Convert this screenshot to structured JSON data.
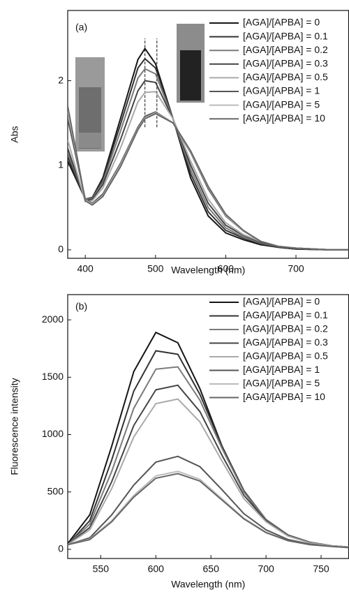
{
  "chart_data": [
    {
      "type": "line",
      "label": "(a)",
      "x_label": "Wavelength (nm)",
      "y_label": "Abs",
      "xlim": [
        375,
        775
      ],
      "ylim": [
        -0.1,
        2.83
      ],
      "xticks": [
        400,
        500,
        600,
        700
      ],
      "yticks": [
        0,
        1,
        2
      ],
      "reference_lines": [
        485,
        502
      ],
      "x": [
        375,
        400,
        410,
        425,
        450,
        475,
        485,
        500,
        525,
        550,
        575,
        600,
        625,
        650,
        675,
        700,
        750,
        775
      ],
      "series": [
        {
          "name": "[AGA]/[APBA] = 0",
          "color": "#151515",
          "values": [
            1.05,
            0.6,
            0.62,
            0.85,
            1.55,
            2.25,
            2.38,
            2.2,
            1.55,
            0.85,
            0.4,
            0.2,
            0.12,
            0.06,
            0.03,
            0.01,
            0.0,
            0.0
          ]
        },
        {
          "name": "[AGA]/[APBA] = 0.1",
          "color": "#333333",
          "values": [
            1.1,
            0.6,
            0.62,
            0.83,
            1.48,
            2.15,
            2.26,
            2.15,
            1.55,
            0.9,
            0.45,
            0.23,
            0.14,
            0.07,
            0.03,
            0.01,
            0.0,
            0.0
          ]
        },
        {
          "name": "[AGA]/[APBA] = 0.2",
          "color": "#7a7a7a",
          "values": [
            1.15,
            0.6,
            0.61,
            0.8,
            1.4,
            2.03,
            2.14,
            2.08,
            1.55,
            0.95,
            0.5,
            0.26,
            0.15,
            0.08,
            0.04,
            0.02,
            0.0,
            0.0
          ]
        },
        {
          "name": "[AGA]/[APBA] = 0.3",
          "color": "#444444",
          "values": [
            1.2,
            0.58,
            0.6,
            0.77,
            1.3,
            1.88,
            2.0,
            1.98,
            1.55,
            1.0,
            0.55,
            0.29,
            0.17,
            0.09,
            0.04,
            0.02,
            0.0,
            0.0
          ]
        },
        {
          "name": "[AGA]/[APBA] = 0.5",
          "color": "#aaaaaa",
          "values": [
            1.3,
            0.57,
            0.58,
            0.73,
            1.2,
            1.75,
            1.86,
            1.87,
            1.55,
            1.05,
            0.6,
            0.32,
            0.18,
            0.1,
            0.04,
            0.02,
            0.0,
            0.0
          ]
        },
        {
          "name": "[AGA]/[APBA] = 1",
          "color": "#555555",
          "values": [
            1.55,
            0.6,
            0.55,
            0.66,
            1.02,
            1.45,
            1.58,
            1.63,
            1.5,
            1.15,
            0.72,
            0.4,
            0.22,
            0.1,
            0.04,
            0.02,
            0.0,
            0.0
          ]
        },
        {
          "name": "[AGA]/[APBA] = 5",
          "color": "#bbbbbb",
          "values": [
            1.65,
            0.59,
            0.54,
            0.64,
            1.0,
            1.43,
            1.56,
            1.62,
            1.5,
            1.16,
            0.74,
            0.41,
            0.22,
            0.1,
            0.04,
            0.02,
            0.0,
            0.0
          ]
        },
        {
          "name": "[AGA]/[APBA] = 10",
          "color": "#666666",
          "values": [
            1.7,
            0.58,
            0.53,
            0.63,
            0.98,
            1.42,
            1.55,
            1.61,
            1.5,
            1.17,
            0.75,
            0.42,
            0.23,
            0.1,
            0.04,
            0.02,
            0.0,
            0.0
          ]
        }
      ]
    },
    {
      "type": "line",
      "label": "(b)",
      "x_label": "Wavelength (nm)",
      "y_label": "Fluorescence intensity",
      "xlim": [
        520,
        775
      ],
      "ylim": [
        -80,
        2220
      ],
      "xticks": [
        550,
        600,
        650,
        700,
        750
      ],
      "yticks": [
        0,
        500,
        1000,
        1500,
        2000
      ],
      "x": [
        520,
        540,
        560,
        580,
        600,
        620,
        640,
        660,
        680,
        700,
        720,
        740,
        760,
        775
      ],
      "series": [
        {
          "name": "[AGA]/[APBA] = 0",
          "color": "#151515",
          "values": [
            50,
            300,
            900,
            1550,
            1890,
            1800,
            1400,
            900,
            500,
            250,
            120,
            60,
            30,
            20
          ]
        },
        {
          "name": "[AGA]/[APBA] = 0.1",
          "color": "#333333",
          "values": [
            40,
            250,
            780,
            1380,
            1730,
            1700,
            1350,
            900,
            510,
            260,
            125,
            60,
            30,
            20
          ]
        },
        {
          "name": "[AGA]/[APBA] = 0.2",
          "color": "#7a7a7a",
          "values": [
            40,
            220,
            680,
            1230,
            1570,
            1590,
            1300,
            880,
            500,
            260,
            125,
            60,
            30,
            20
          ]
        },
        {
          "name": "[AGA]/[APBA] = 0.3",
          "color": "#444444",
          "values": [
            40,
            190,
            590,
            1080,
            1390,
            1430,
            1200,
            820,
            470,
            250,
            120,
            60,
            30,
            20
          ]
        },
        {
          "name": "[AGA]/[APBA] = 0.5",
          "color": "#aaaaaa",
          "values": [
            40,
            170,
            530,
            980,
            1270,
            1310,
            1110,
            770,
            440,
            240,
            115,
            55,
            30,
            20
          ]
        },
        {
          "name": "[AGA]/[APBA] = 1",
          "color": "#555555",
          "values": [
            40,
            100,
            300,
            560,
            760,
            810,
            720,
            520,
            310,
            170,
            85,
            45,
            25,
            15
          ]
        },
        {
          "name": "[AGA]/[APBA] = 5",
          "color": "#bbbbbb",
          "values": [
            40,
            90,
            250,
            470,
            640,
            680,
            610,
            440,
            270,
            150,
            75,
            40,
            25,
            15
          ]
        },
        {
          "name": "[AGA]/[APBA] = 10",
          "color": "#666666",
          "values": [
            40,
            85,
            240,
            455,
            620,
            660,
            595,
            430,
            265,
            145,
            75,
            40,
            25,
            15
          ]
        }
      ]
    }
  ]
}
